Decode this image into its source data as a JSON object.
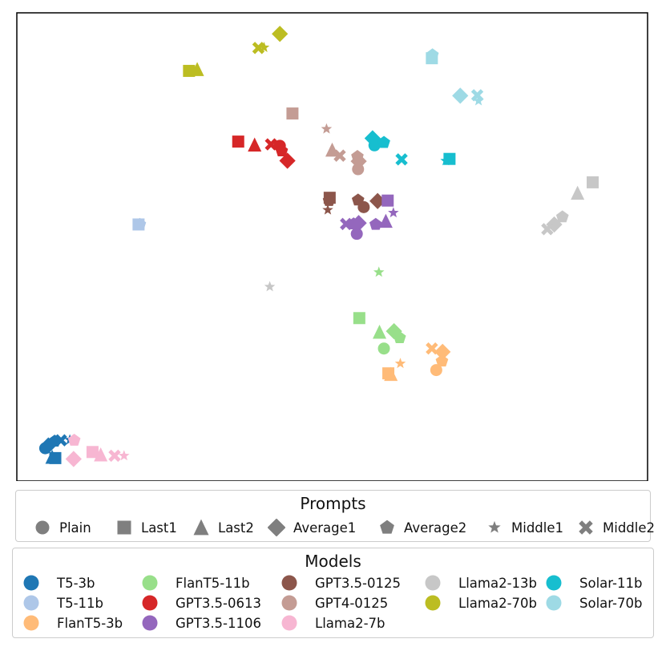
{
  "chart_data": {
    "type": "scatter",
    "title": "",
    "xlabel": "",
    "ylabel": "",
    "xlim": [
      0,
      100
    ],
    "ylim": [
      0,
      100
    ],
    "grid": false,
    "axis_ticks": false,
    "model_colors": {
      "T5-3b": "#1f77b4",
      "T5-11b": "#aec7e8",
      "FlanT5-3b": "#ffbb78",
      "FlanT5-11b": "#98df8a",
      "GPT3.5-0613": "#d62728",
      "GPT3.5-1106": "#9467bd",
      "GPT3.5-0125": "#8c564b",
      "GPT4-0125": "#c49c94",
      "Llama2-7b": "#f7b6d2",
      "Llama2-13b": "#c7c7c7",
      "Llama2-70b": "#bcbd22",
      "Solar-11b": "#17becf",
      "Solar-70b": "#9edae5"
    },
    "prompt_markers": {
      "Plain": "circle",
      "Last1": "square",
      "Last2": "triangle",
      "Average1": "diamond",
      "Average2": "pentagon",
      "Middle1": "star",
      "Middle2": "x"
    },
    "points": [
      {
        "model": "T5-3b",
        "prompt": "Plain",
        "x": 4.5,
        "y": 7.0
      },
      {
        "model": "T5-3b",
        "prompt": "Last1",
        "x": 6.1,
        "y": 4.9
      },
      {
        "model": "T5-3b",
        "prompt": "Last2",
        "x": 5.6,
        "y": 5.1
      },
      {
        "model": "T5-3b",
        "prompt": "Average1",
        "x": 5.0,
        "y": 7.6
      },
      {
        "model": "T5-3b",
        "prompt": "Average2",
        "x": 6.0,
        "y": 8.5
      },
      {
        "model": "T5-3b",
        "prompt": "Middle1",
        "x": 8.4,
        "y": 8.8
      },
      {
        "model": "T5-3b",
        "prompt": "Middle2",
        "x": 7.0,
        "y": 8.7
      },
      {
        "model": "T5-11b",
        "prompt": "Last1",
        "x": 19.3,
        "y": 54.8
      },
      {
        "model": "T5-11b",
        "prompt": "Average2",
        "x": 19.5,
        "y": 54.8
      },
      {
        "model": "Llama2-7b",
        "prompt": "Average2",
        "x": 9.1,
        "y": 8.7
      },
      {
        "model": "Llama2-7b",
        "prompt": "Average1",
        "x": 9.0,
        "y": 4.7
      },
      {
        "model": "Llama2-7b",
        "prompt": "Last1",
        "x": 12.0,
        "y": 6.2
      },
      {
        "model": "Llama2-7b",
        "prompt": "Last2",
        "x": 13.3,
        "y": 5.6
      },
      {
        "model": "Llama2-7b",
        "prompt": "Middle2",
        "x": 15.5,
        "y": 5.4
      },
      {
        "model": "Llama2-7b",
        "prompt": "Middle1",
        "x": 17.0,
        "y": 5.4
      },
      {
        "model": "Llama2-70b",
        "prompt": "Last1",
        "x": 27.3,
        "y": 87.6
      },
      {
        "model": "Llama2-70b",
        "prompt": "Last2",
        "x": 28.6,
        "y": 87.9
      },
      {
        "model": "Llama2-70b",
        "prompt": "Middle2",
        "x": 38.3,
        "y": 92.5
      },
      {
        "model": "Llama2-70b",
        "prompt": "Middle1",
        "x": 39.2,
        "y": 92.6
      },
      {
        "model": "Llama2-70b",
        "prompt": "Average1",
        "x": 41.7,
        "y": 95.5
      },
      {
        "model": "GPT3.5-0613",
        "prompt": "Last1",
        "x": 35.1,
        "y": 72.5
      },
      {
        "model": "GPT3.5-0613",
        "prompt": "Last2",
        "x": 37.7,
        "y": 71.8
      },
      {
        "model": "GPT3.5-0613",
        "prompt": "Middle2",
        "x": 40.3,
        "y": 71.9
      },
      {
        "model": "GPT3.5-0613",
        "prompt": "Plain",
        "x": 41.7,
        "y": 71.6
      },
      {
        "model": "GPT3.5-0613",
        "prompt": "Average2",
        "x": 42.0,
        "y": 70.5
      },
      {
        "model": "GPT3.5-0613",
        "prompt": "Average1",
        "x": 42.9,
        "y": 68.4
      },
      {
        "model": "GPT4-0125",
        "prompt": "Last1",
        "x": 43.7,
        "y": 78.5
      },
      {
        "model": "GPT4-0125",
        "prompt": "Middle1",
        "x": 49.1,
        "y": 75.2
      },
      {
        "model": "GPT4-0125",
        "prompt": "Last2",
        "x": 50.0,
        "y": 70.7
      },
      {
        "model": "GPT4-0125",
        "prompt": "Middle2",
        "x": 51.2,
        "y": 69.5
      },
      {
        "model": "GPT4-0125",
        "prompt": "Average2",
        "x": 54.0,
        "y": 69.3
      },
      {
        "model": "GPT4-0125",
        "prompt": "Average1",
        "x": 54.2,
        "y": 68.3
      },
      {
        "model": "GPT4-0125",
        "prompt": "Plain",
        "x": 54.1,
        "y": 66.6
      },
      {
        "model": "GPT3.5-0125",
        "prompt": "Last1",
        "x": 49.6,
        "y": 60.5
      },
      {
        "model": "GPT3.5-0125",
        "prompt": "Average2",
        "x": 49.5,
        "y": 59.9
      },
      {
        "model": "GPT3.5-0125",
        "prompt": "Middle1",
        "x": 49.3,
        "y": 57.9
      },
      {
        "model": "GPT3.5-0125",
        "prompt": "Average2",
        "x": 54.1,
        "y": 60.0
      },
      {
        "model": "GPT3.5-0125",
        "prompt": "Plain",
        "x": 55.0,
        "y": 58.5
      },
      {
        "model": "GPT3.5-0125",
        "prompt": "Average1",
        "x": 57.2,
        "y": 59.8
      },
      {
        "model": "GPT3.5-1106",
        "prompt": "Middle2",
        "x": 52.2,
        "y": 54.9
      },
      {
        "model": "GPT3.5-1106",
        "prompt": "Average2",
        "x": 53.4,
        "y": 54.9
      },
      {
        "model": "GPT3.5-1106",
        "prompt": "Average1",
        "x": 54.2,
        "y": 55.1
      },
      {
        "model": "GPT3.5-1106",
        "prompt": "Plain",
        "x": 53.9,
        "y": 52.8
      },
      {
        "model": "GPT3.5-1106",
        "prompt": "Average2",
        "x": 56.9,
        "y": 54.8
      },
      {
        "model": "GPT3.5-1106",
        "prompt": "Last2",
        "x": 58.5,
        "y": 55.5
      },
      {
        "model": "GPT3.5-1106",
        "prompt": "Last1",
        "x": 58.8,
        "y": 59.9
      },
      {
        "model": "GPT3.5-1106",
        "prompt": "Middle1",
        "x": 59.7,
        "y": 57.3
      },
      {
        "model": "Solar-11b",
        "prompt": "Average1",
        "x": 56.4,
        "y": 73.2
      },
      {
        "model": "Solar-11b",
        "prompt": "Plain",
        "x": 56.7,
        "y": 71.7
      },
      {
        "model": "Solar-11b",
        "prompt": "Average2",
        "x": 58.2,
        "y": 72.3
      },
      {
        "model": "Solar-11b",
        "prompt": "Middle2",
        "x": 61.0,
        "y": 68.7
      },
      {
        "model": "Solar-11b",
        "prompt": "Last1",
        "x": 68.6,
        "y": 68.8
      },
      {
        "model": "Solar-11b",
        "prompt": "Middle1",
        "x": 68.0,
        "y": 68.4
      },
      {
        "model": "Solar-70b",
        "prompt": "Last1",
        "x": 65.8,
        "y": 90.3
      },
      {
        "model": "Solar-70b",
        "prompt": "Average2",
        "x": 65.9,
        "y": 91.0
      },
      {
        "model": "Solar-70b",
        "prompt": "Average1",
        "x": 70.3,
        "y": 82.3
      },
      {
        "model": "Solar-70b",
        "prompt": "Middle2",
        "x": 73.0,
        "y": 82.4
      },
      {
        "model": "Solar-70b",
        "prompt": "Middle1",
        "x": 73.2,
        "y": 81.2
      },
      {
        "model": "Llama2-13b",
        "prompt": "Middle1",
        "x": 40.1,
        "y": 41.5
      },
      {
        "model": "Llama2-13b",
        "prompt": "Last1",
        "x": 91.3,
        "y": 63.8
      },
      {
        "model": "Llama2-13b",
        "prompt": "Last2",
        "x": 88.9,
        "y": 61.5
      },
      {
        "model": "Llama2-13b",
        "prompt": "Average2",
        "x": 86.5,
        "y": 56.4
      },
      {
        "model": "Llama2-13b",
        "prompt": "Average1",
        "x": 85.2,
        "y": 54.8
      },
      {
        "model": "Llama2-13b",
        "prompt": "Middle2",
        "x": 84.1,
        "y": 53.8
      },
      {
        "model": "FlanT5-11b",
        "prompt": "Middle1",
        "x": 57.4,
        "y": 44.6
      },
      {
        "model": "FlanT5-11b",
        "prompt": "Last1",
        "x": 54.3,
        "y": 34.8
      },
      {
        "model": "FlanT5-11b",
        "prompt": "Last2",
        "x": 57.5,
        "y": 31.8
      },
      {
        "model": "FlanT5-11b",
        "prompt": "Average1",
        "x": 59.8,
        "y": 32.0
      },
      {
        "model": "FlanT5-11b",
        "prompt": "Average2",
        "x": 60.7,
        "y": 30.6
      },
      {
        "model": "FlanT5-11b",
        "prompt": "Plain",
        "x": 58.2,
        "y": 28.3
      },
      {
        "model": "FlanT5-3b",
        "prompt": "Last1",
        "x": 58.9,
        "y": 23.0
      },
      {
        "model": "FlanT5-3b",
        "prompt": "Last2",
        "x": 59.3,
        "y": 22.8
      },
      {
        "model": "FlanT5-3b",
        "prompt": "Middle1",
        "x": 60.8,
        "y": 25.1
      },
      {
        "model": "FlanT5-3b",
        "prompt": "Middle2",
        "x": 65.8,
        "y": 28.3
      },
      {
        "model": "FlanT5-3b",
        "prompt": "Average1",
        "x": 67.5,
        "y": 27.6
      },
      {
        "model": "FlanT5-3b",
        "prompt": "Average2",
        "x": 67.4,
        "y": 25.6
      },
      {
        "model": "FlanT5-3b",
        "prompt": "Plain",
        "x": 66.5,
        "y": 23.7
      }
    ]
  },
  "legend_prompts": {
    "title": "Prompts",
    "items": [
      {
        "label": "Plain",
        "marker": "circle"
      },
      {
        "label": "Last1",
        "marker": "square"
      },
      {
        "label": "Last2",
        "marker": "triangle"
      },
      {
        "label": "Average1",
        "marker": "diamond"
      },
      {
        "label": "Average2",
        "marker": "pentagon"
      },
      {
        "label": "Middle1",
        "marker": "star"
      },
      {
        "label": "Middle2",
        "marker": "x"
      }
    ],
    "marker_color": "#7f7f7f"
  },
  "legend_models": {
    "title": "Models",
    "columns": [
      [
        "T5-3b",
        "T5-11b",
        "FlanT5-3b"
      ],
      [
        "FlanT5-11b",
        "GPT3.5-0613",
        "GPT3.5-1106"
      ],
      [
        "GPT3.5-0125",
        "GPT4-0125",
        "Llama2-7b"
      ],
      [
        "Llama2-13b",
        "Llama2-70b"
      ],
      [
        "Solar-11b",
        "Solar-70b"
      ]
    ]
  }
}
